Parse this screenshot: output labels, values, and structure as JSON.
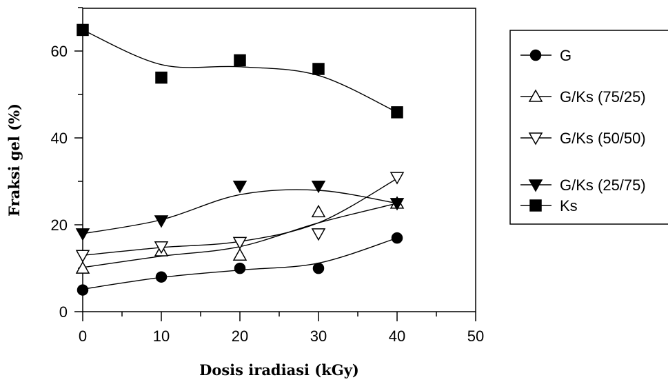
{
  "chart_data": {
    "type": "scatter",
    "xlabel": "Dosis iradiasi (kGy)",
    "ylabel": "Fraksi gel (%)",
    "xlim": [
      0,
      50
    ],
    "ylim": [
      0,
      70
    ],
    "x_ticks": [
      "0",
      "10",
      "20",
      "30",
      "40",
      "50"
    ],
    "y_ticks": [
      "0",
      "20",
      "40",
      "60"
    ],
    "grid": false,
    "legend_position": "right",
    "x": [
      0,
      10,
      20,
      30,
      40
    ],
    "series": [
      {
        "name": "G",
        "marker": "filled-circle",
        "values": [
          5,
          8,
          10,
          10,
          17
        ],
        "curve": [
          5.2,
          7.9,
          9.6,
          11.2,
          17.0
        ]
      },
      {
        "name": "G/Ks (75/25)",
        "marker": "open-triangle-up",
        "values": [
          10,
          14,
          13,
          23,
          25
        ],
        "curve": [
          10.2,
          12.8,
          15.0,
          20.5,
          25.0
        ]
      },
      {
        "name": "G/Ks (50/50)",
        "marker": "open-triangle-down",
        "values": [
          13,
          15,
          16,
          18,
          31
        ],
        "curve": [
          13.0,
          14.8,
          16.2,
          20.5,
          30.7
        ]
      },
      {
        "name": "G/Ks (25/75)",
        "marker": "filled-triangle-down",
        "values": [
          18,
          21,
          29,
          29,
          25
        ],
        "curve": [
          18.0,
          21.2,
          27.0,
          28.0,
          25.0
        ]
      },
      {
        "name": "Ks",
        "marker": "filled-square",
        "values": [
          65,
          54,
          58,
          56,
          46
        ],
        "curve": [
          65.0,
          57.0,
          56.5,
          54.5,
          46.0
        ]
      }
    ]
  }
}
